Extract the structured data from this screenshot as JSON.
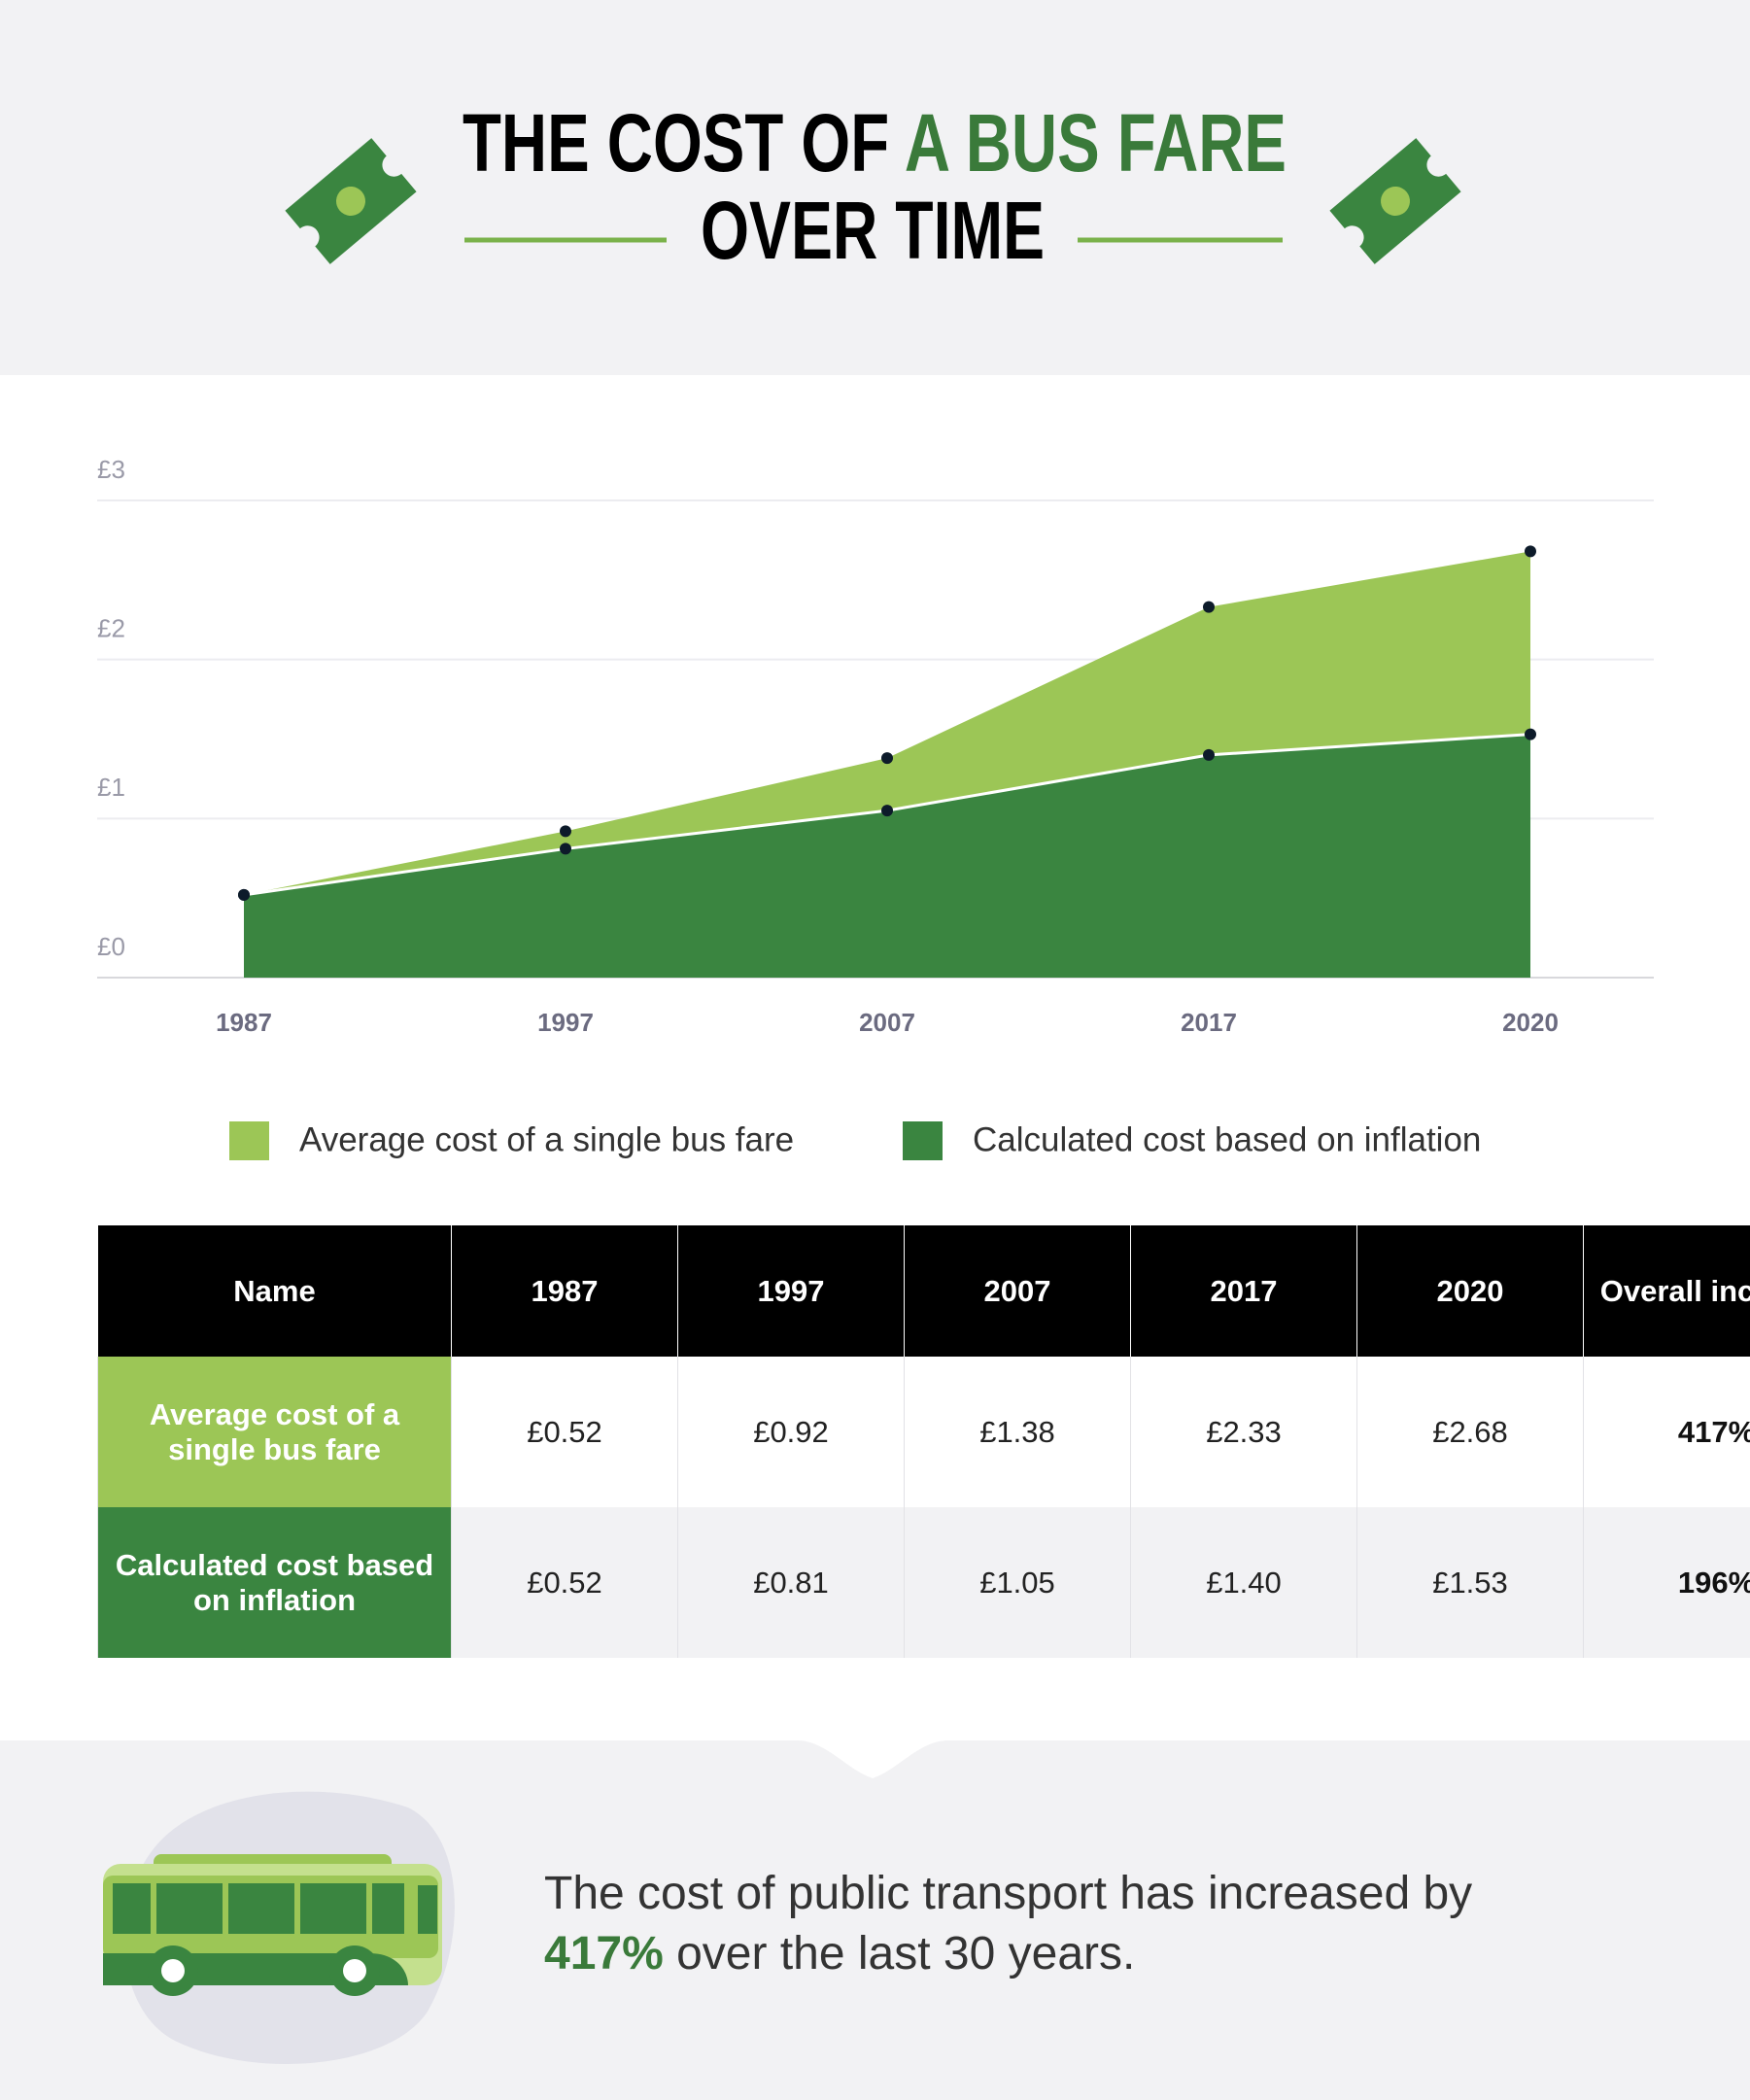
{
  "header": {
    "title_black": "THE COST OF",
    "title_green": "A BUS FARE",
    "title_line2": "OVER TIME"
  },
  "chart_data": {
    "type": "area",
    "categories": [
      "1987",
      "1997",
      "2007",
      "2017",
      "2020"
    ],
    "series": [
      {
        "name": "Average cost of a single bus fare",
        "color": "#9cc656",
        "values": [
          0.52,
          0.92,
          1.38,
          2.33,
          2.68
        ]
      },
      {
        "name": "Calculated cost based on inflation",
        "color": "#3a8540",
        "values": [
          0.52,
          0.81,
          1.05,
          1.4,
          1.53
        ]
      }
    ],
    "ylim": [
      0,
      3
    ],
    "yticks": [
      {
        "value": 0,
        "label": "£0"
      },
      {
        "value": 1,
        "label": "£1"
      },
      {
        "value": 2,
        "label": "£2"
      },
      {
        "value": 3,
        "label": "£3"
      }
    ],
    "grid": true
  },
  "table": {
    "header": [
      "Name",
      "1987",
      "1997",
      "2007",
      "2017",
      "2020",
      "Overall increase"
    ],
    "rows": [
      [
        "Average cost of a single bus fare",
        "£0.52",
        "£0.92",
        "£1.38",
        "£2.33",
        "£2.68",
        "417%"
      ],
      [
        "Calculated cost based on inflation",
        "£0.52",
        "£0.81",
        "£1.05",
        "£1.40",
        "£1.53",
        "196%"
      ]
    ]
  },
  "footer": {
    "text_before": "The cost of public transport has increased by",
    "highlight": "417%",
    "text_after": "over the last 30 years."
  }
}
